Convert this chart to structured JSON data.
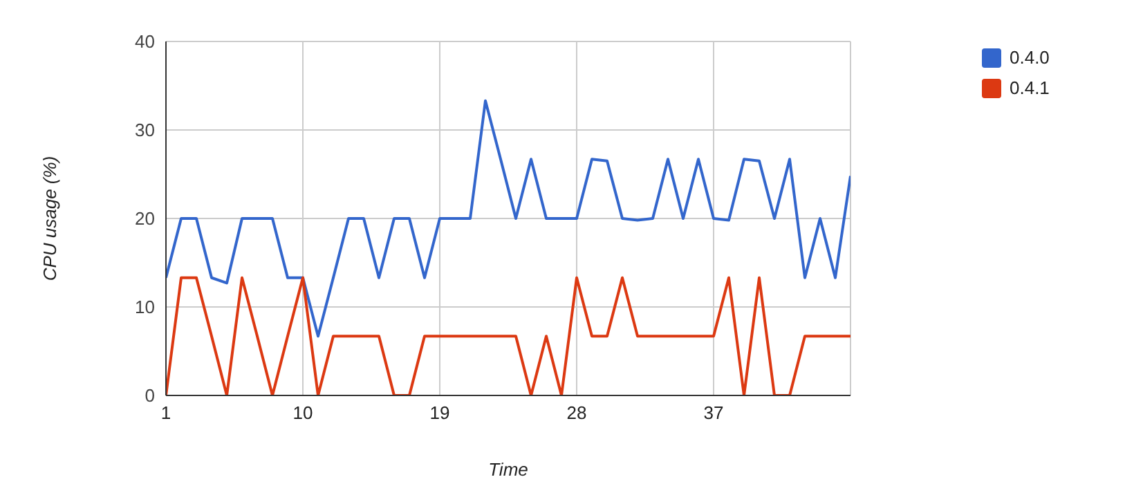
{
  "chart_data": {
    "type": "line",
    "xlabel": "Time",
    "ylabel": "CPU usage (%)",
    "x": [
      1,
      2,
      3,
      4,
      5,
      6,
      7,
      8,
      9,
      10,
      11,
      12,
      13,
      14,
      15,
      16,
      17,
      18,
      19,
      20,
      21,
      22,
      23,
      24,
      25,
      26,
      27,
      28,
      29,
      30,
      31,
      32,
      33,
      34,
      35,
      36,
      37,
      38,
      39,
      40,
      41,
      42,
      43,
      44,
      45,
      46
    ],
    "series": [
      {
        "name": "0.4.0",
        "color": "#3366cc",
        "values": [
          13.3,
          20,
          20,
          13.3,
          12.7,
          20,
          20,
          20,
          13.3,
          13.3,
          6.7,
          13.3,
          20,
          20,
          13.3,
          20,
          20,
          13.3,
          20,
          20,
          20,
          33.3,
          26.7,
          20,
          26.7,
          20,
          20,
          20,
          26.7,
          26.5,
          20,
          19.8,
          20,
          26.7,
          20,
          26.7,
          20,
          19.8,
          26.7,
          26.5,
          20,
          26.7,
          13.3,
          20,
          13.3,
          24.8
        ]
      },
      {
        "name": "0.4.1",
        "color": "#dc3912",
        "values": [
          0,
          13.3,
          13.3,
          6.7,
          0,
          13.3,
          6.7,
          0,
          6.7,
          13.3,
          0,
          6.7,
          6.7,
          6.7,
          6.7,
          0,
          0,
          6.7,
          6.7,
          6.7,
          6.7,
          6.7,
          6.7,
          6.7,
          0,
          6.7,
          0,
          13.3,
          6.7,
          6.7,
          13.3,
          6.7,
          6.7,
          6.7,
          6.7,
          6.7,
          6.7,
          13.3,
          0,
          13.3,
          0,
          0,
          6.7,
          6.7,
          6.7,
          6.7
        ]
      }
    ],
    "xlim": [
      1,
      46
    ],
    "xticks": [
      1,
      10,
      19,
      28,
      37
    ],
    "ylim": [
      0,
      40
    ],
    "yticks": [
      0,
      10,
      20,
      30,
      40
    ],
    "grid": true,
    "legend": "top right",
    "marker": "none",
    "line_style": "solid"
  }
}
